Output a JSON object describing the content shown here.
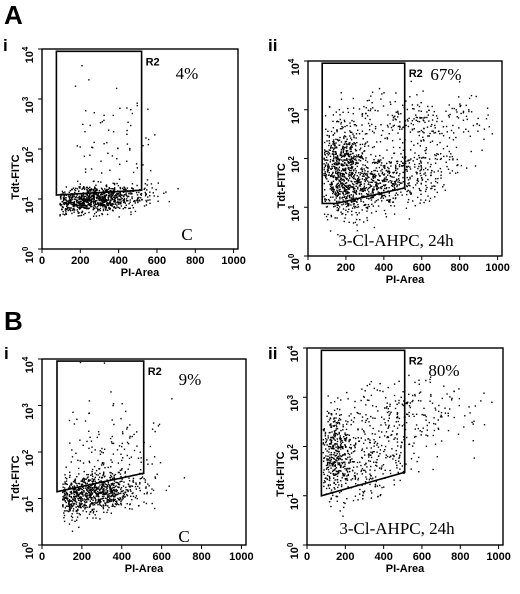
{
  "figure": {
    "panels": [
      {
        "letter": "A"
      },
      {
        "letter": "B"
      }
    ]
  },
  "chart_data": [
    {
      "type": "scatter",
      "panel": "A",
      "subpanel": "i",
      "xlabel": "PI-Area",
      "ylabel": "Tdt-FITC",
      "xlim": [
        0,
        1023
      ],
      "ylim": [
        1,
        10000
      ],
      "yscale": "log",
      "xticks": [
        "0",
        "200",
        "400",
        "600",
        "800",
        "1000"
      ],
      "yticks": [
        {
          "base": "10",
          "exp": "0"
        },
        {
          "base": "10",
          "exp": "1"
        },
        {
          "base": "10",
          "exp": "2"
        },
        {
          "base": "10",
          "exp": "3"
        },
        {
          "base": "10",
          "exp": "4"
        }
      ],
      "gate": {
        "name": "R2",
        "polygon": [
          [
            75,
            9000
          ],
          [
            520,
            9000
          ],
          [
            520,
            15
          ],
          [
            75,
            12
          ]
        ]
      },
      "percent_label": "4%",
      "condition_label": "C",
      "clusters": [
        {
          "n": 900,
          "x_mean": 260,
          "x_sd": 140,
          "logy_mean": 1.0,
          "logy_sd": 0.13,
          "x_min": 90,
          "x_max": 1000,
          "slope": 0.0003
        },
        {
          "n": 70,
          "x_mean": 330,
          "x_sd": 130,
          "logy_mean": 2.1,
          "logy_sd": 0.55,
          "x_min": 120,
          "x_max": 950,
          "slope": 0
        }
      ]
    },
    {
      "type": "scatter",
      "panel": "A",
      "subpanel": "ii",
      "xlabel": "PI-Area",
      "ylabel": "Tdt-FITC",
      "xlim": [
        0,
        1023
      ],
      "ylim": [
        1,
        10000
      ],
      "yscale": "log",
      "xticks": [
        "0",
        "200",
        "400",
        "600",
        "800",
        "1000"
      ],
      "yticks": [
        {
          "base": "10",
          "exp": "0"
        },
        {
          "base": "10",
          "exp": "1"
        },
        {
          "base": "10",
          "exp": "2"
        },
        {
          "base": "10",
          "exp": "3"
        },
        {
          "base": "10",
          "exp": "4"
        }
      ],
      "gate": {
        "name": "R2",
        "polygon": [
          [
            75,
            9000
          ],
          [
            510,
            9000
          ],
          [
            510,
            25
          ],
          [
            150,
            12
          ],
          [
            75,
            12
          ]
        ]
      },
      "percent_label": "67%",
      "condition_label": "3-Cl-AHPC, 24h",
      "clusters": [
        {
          "n": 700,
          "x_mean": 170,
          "x_sd": 70,
          "logy_mean": 1.8,
          "logy_sd": 0.45,
          "x_min": 80,
          "x_max": 420,
          "slope": 0
        },
        {
          "n": 650,
          "x_mean": 380,
          "x_sd": 190,
          "logy_mean": 1.5,
          "logy_sd": 0.3,
          "x_min": 150,
          "x_max": 960,
          "slope": 0.001
        },
        {
          "n": 260,
          "x_mean": 560,
          "x_sd": 220,
          "logy_mean": 2.8,
          "logy_sd": 0.3,
          "x_min": 120,
          "x_max": 980,
          "slope": 0
        }
      ]
    },
    {
      "type": "scatter",
      "panel": "B",
      "subpanel": "i",
      "xlabel": "PI-Area",
      "ylabel": "Tdt-FITC",
      "xlim": [
        0,
        1023
      ],
      "ylim": [
        1,
        10000
      ],
      "yscale": "log",
      "xticks": [
        "0",
        "200",
        "400",
        "600",
        "800",
        "1000"
      ],
      "yticks": [
        {
          "base": "10",
          "exp": "0"
        },
        {
          "base": "10",
          "exp": "1"
        },
        {
          "base": "10",
          "exp": "2"
        },
        {
          "base": "10",
          "exp": "3"
        },
        {
          "base": "10",
          "exp": "4"
        }
      ],
      "gate": {
        "name": "R2",
        "polygon": [
          [
            75,
            9000
          ],
          [
            510,
            9000
          ],
          [
            510,
            35
          ],
          [
            75,
            14
          ]
        ]
      },
      "percent_label": "9%",
      "condition_label": "C",
      "clusters": [
        {
          "n": 850,
          "x_mean": 240,
          "x_sd": 130,
          "logy_mean": 1.1,
          "logy_sd": 0.22,
          "x_min": 100,
          "x_max": 980,
          "slope": 0.0005
        },
        {
          "n": 110,
          "x_mean": 310,
          "x_sd": 150,
          "logy_mean": 2.1,
          "logy_sd": 0.5,
          "x_min": 110,
          "x_max": 950,
          "slope": 0
        }
      ]
    },
    {
      "type": "scatter",
      "panel": "B",
      "subpanel": "ii",
      "xlabel": "PI-Area",
      "ylabel": "Tdt-FITC",
      "xlim": [
        0,
        1023
      ],
      "ylim": [
        1,
        10000
      ],
      "yscale": "log",
      "xticks": [
        "0",
        "200",
        "400",
        "600",
        "800",
        "1000"
      ],
      "yticks": [
        {
          "base": "10",
          "exp": "0"
        },
        {
          "base": "10",
          "exp": "1"
        },
        {
          "base": "10",
          "exp": "2"
        },
        {
          "base": "10",
          "exp": "3"
        },
        {
          "base": "10",
          "exp": "4"
        }
      ],
      "gate": {
        "name": "R2",
        "polygon": [
          [
            75,
            9000
          ],
          [
            510,
            9000
          ],
          [
            510,
            30
          ],
          [
            75,
            10
          ]
        ]
      },
      "percent_label": "80%",
      "condition_label": "3-Cl-AHPC, 24h",
      "clusters": [
        {
          "n": 380,
          "x_mean": 140,
          "x_sd": 45,
          "logy_mean": 1.9,
          "logy_sd": 0.45,
          "x_min": 80,
          "x_max": 320,
          "slope": 0
        },
        {
          "n": 260,
          "x_mean": 320,
          "x_sd": 130,
          "logy_mean": 1.7,
          "logy_sd": 0.35,
          "x_min": 150,
          "x_max": 700,
          "slope": 0.001
        },
        {
          "n": 220,
          "x_mean": 480,
          "x_sd": 220,
          "logy_mean": 2.7,
          "logy_sd": 0.35,
          "x_min": 130,
          "x_max": 970,
          "slope": 0
        }
      ]
    }
  ]
}
